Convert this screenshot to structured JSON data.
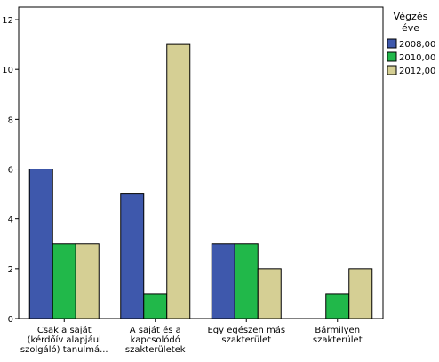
{
  "chart_data": {
    "type": "bar",
    "categories": [
      [
        "Csak a saját",
        "(kérdőív alapjául",
        "szolgáló) tanulmá..."
      ],
      [
        "A saját és a",
        "kapcsolódó",
        "szakterületek"
      ],
      [
        "Egy egészen más",
        "szakterület"
      ],
      [
        "Bármilyen",
        "szakterület"
      ]
    ],
    "series": [
      {
        "name": "2008,00",
        "color": "#3e58ac",
        "values": [
          6,
          5,
          3,
          null
        ]
      },
      {
        "name": "2010,00",
        "color": "#21b84a",
        "values": [
          3,
          1,
          3,
          1
        ]
      },
      {
        "name": "2012,00",
        "color": "#d5cf94",
        "values": [
          3,
          11,
          2,
          2
        ]
      }
    ],
    "y_ticks": [
      "0",
      "2",
      "4",
      "6",
      "8",
      "10",
      "12"
    ],
    "ylim": [
      0,
      12.5
    ],
    "legend_title": [
      "Végzés",
      "éve"
    ],
    "legend_position": "right",
    "grid": false
  }
}
